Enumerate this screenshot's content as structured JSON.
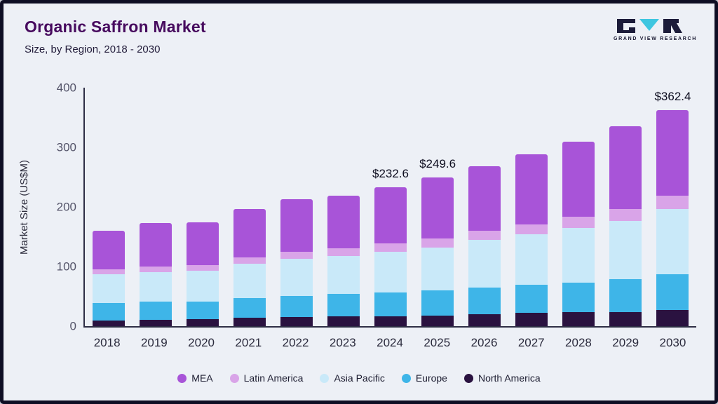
{
  "header": {
    "title": "Organic Saffron Market",
    "subtitle": "Size, by Region, 2018 - 2030",
    "logo_text": "GRAND VIEW RESEARCH"
  },
  "colors": {
    "frame_border": "#0e0e24",
    "background": "#edf0f6",
    "title": "#470a5e",
    "axis": "#2e2e45",
    "logo_dark": "#1c1c3a",
    "logo_teal": "#3ec6e0"
  },
  "chart_data": {
    "type": "bar",
    "stacked": true,
    "title": "Organic Saffron Market Size, by Region, 2018 - 2030",
    "xlabel": "",
    "ylabel": "Market Size (US$M)",
    "ylim": [
      0,
      400
    ],
    "yticks": [
      0,
      100,
      200,
      300,
      400
    ],
    "grid": false,
    "legend_position": "bottom",
    "categories": [
      "2018",
      "2019",
      "2020",
      "2021",
      "2022",
      "2023",
      "2024",
      "2025",
      "2026",
      "2027",
      "2028",
      "2029",
      "2030"
    ],
    "series": [
      {
        "name": "North America",
        "color": "#2a1240",
        "values": [
          10,
          11,
          12,
          14,
          15,
          16,
          17,
          18,
          20,
          22,
          23,
          24,
          27
        ]
      },
      {
        "name": "Europe",
        "color": "#3eb5e8",
        "values": [
          29,
          30,
          29,
          33,
          36,
          38,
          40,
          42,
          45,
          47,
          50,
          55,
          60
        ]
      },
      {
        "name": "Asia Pacific",
        "color": "#c9e9f9",
        "values": [
          48,
          50,
          52,
          58,
          62,
          64,
          68,
          72,
          80,
          85,
          92,
          98,
          110
        ]
      },
      {
        "name": "Latin America",
        "color": "#d9a4e8",
        "values": [
          8,
          9,
          9,
          10,
          12,
          13,
          14,
          15.6,
          15,
          17,
          18,
          20,
          22
        ]
      },
      {
        "name": "MEA",
        "color": "#a854d8",
        "values": [
          65,
          73,
          72,
          81,
          88,
          88,
          93.6,
          102,
          108,
          117,
          127,
          138,
          143.4
        ]
      }
    ],
    "totals": [
      160,
      173,
      174,
      196,
      213,
      219,
      232.6,
      249.6,
      268,
      288,
      310,
      335,
      362.4
    ],
    "legend_order": [
      "MEA",
      "Latin America",
      "Asia Pacific",
      "Europe",
      "North America"
    ],
    "annotations": [
      {
        "category": "2024",
        "label": "$232.6"
      },
      {
        "category": "2025",
        "label": "$249.6"
      },
      {
        "category": "2030",
        "label": "$362.4"
      }
    ]
  }
}
